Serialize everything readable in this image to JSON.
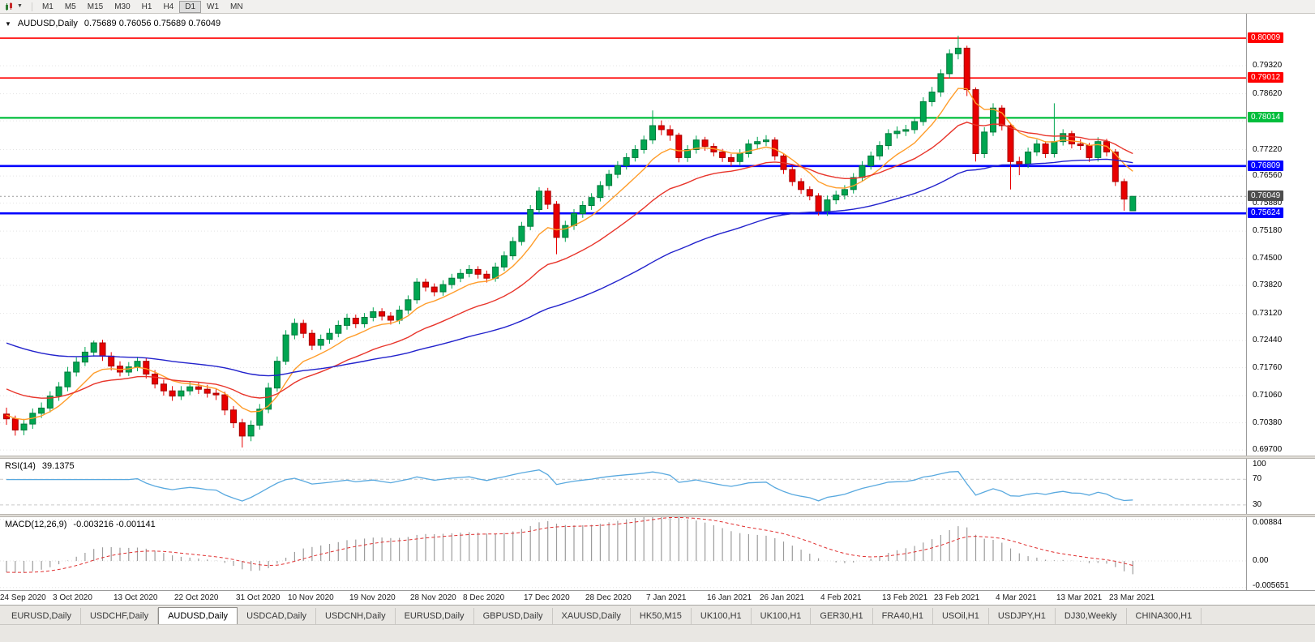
{
  "toolbar": {
    "timeframes": [
      "M1",
      "M5",
      "M15",
      "M30",
      "H1",
      "H4",
      "D1",
      "W1",
      "MN"
    ],
    "active_timeframe": "D1",
    "chart_type_icon": "candlestick-chart-icon",
    "dropdown_icon": "chevron-down-icon"
  },
  "main_pane": {
    "title": "AUDUSD,Daily",
    "ohlc": "0.75689 0.76056 0.75689 0.76049",
    "axis_ticks": [
      {
        "label": "0.79320",
        "value": 0.7932
      },
      {
        "label": "0.78620",
        "value": 0.7862
      },
      {
        "label": "0.77940",
        "value": 0.7794
      },
      {
        "label": "0.77220",
        "value": 0.7722
      },
      {
        "label": "0.76560",
        "value": 0.7656
      },
      {
        "label": "0.75880",
        "value": 0.7588
      },
      {
        "label": "0.75180",
        "value": 0.7518
      },
      {
        "label": "0.74500",
        "value": 0.745
      },
      {
        "label": "0.73820",
        "value": 0.7382
      },
      {
        "label": "0.73120",
        "value": 0.7312
      },
      {
        "label": "0.72440",
        "value": 0.7244
      },
      {
        "label": "0.71760",
        "value": 0.7176
      },
      {
        "label": "0.71060",
        "value": 0.7106
      },
      {
        "label": "0.70380",
        "value": 0.7038
      },
      {
        "label": "0.69700",
        "value": 0.697
      }
    ],
    "levels": [
      {
        "label": "0.80009",
        "value": 0.80009,
        "color": "#FF0000",
        "width": 1.6
      },
      {
        "label": "0.79012",
        "value": 0.79012,
        "color": "#FF0000",
        "width": 1.6
      },
      {
        "label": "0.78014",
        "value": 0.78014,
        "color": "#00BE3C",
        "width": 2.2
      },
      {
        "label": "0.76809",
        "value": 0.76809,
        "color": "#0000FF",
        "width": 2.6
      },
      {
        "label": "0.75624",
        "value": 0.75624,
        "color": "#0000FF",
        "width": 2.6
      }
    ],
    "current_price": {
      "label": "0.76049",
      "value": 0.76049,
      "badge_color": "#4D4D4D",
      "line_color": "#9A9A9A"
    }
  },
  "rsi_pane": {
    "label": "RSI(14)",
    "value": "39.1375",
    "period": 14,
    "color": "#59A9DF",
    "levels": [
      {
        "label": "100",
        "value": 100,
        "line": false
      },
      {
        "label": "70",
        "value": 70,
        "line": true
      },
      {
        "label": "30",
        "value": 30,
        "line": true
      }
    ]
  },
  "macd_pane": {
    "label": "MACD(12,26,9)",
    "values": "-0.003216 -0.001141",
    "params": {
      "fast": 12,
      "slow": 26,
      "signal": 9,
      "seed_fast": 0.706,
      "seed_slow": 0.7085
    },
    "colors": {
      "hist": "#9C9C9C",
      "signal": "#E03030"
    },
    "axis": [
      {
        "label": "0.00884",
        "value": 0.00884
      },
      {
        "label": "0.00",
        "value": 0
      },
      {
        "label": "-0.005651",
        "value": -0.005651
      }
    ]
  },
  "date_axis": {
    "labels": [
      {
        "text": "24 Sep 2020",
        "index": 0
      },
      {
        "text": "3 Oct 2020",
        "index": 6
      },
      {
        "text": "13 Oct 2020",
        "index": 13
      },
      {
        "text": "22 Oct 2020",
        "index": 20
      },
      {
        "text": "31 Oct 2020",
        "index": 27
      },
      {
        "text": "10 Nov 2020",
        "index": 33
      },
      {
        "text": "19 Nov 2020",
        "index": 40
      },
      {
        "text": "28 Nov 2020",
        "index": 47
      },
      {
        "text": "8 Dec 2020",
        "index": 53
      },
      {
        "text": "17 Dec 2020",
        "index": 60
      },
      {
        "text": "28 Dec 2020",
        "index": 67
      },
      {
        "text": "7 Jan 2021",
        "index": 74
      },
      {
        "text": "16 Jan 2021",
        "index": 81
      },
      {
        "text": "26 Jan 2021",
        "index": 87
      },
      {
        "text": "4 Feb 2021",
        "index": 94
      },
      {
        "text": "13 Feb 2021",
        "index": 101
      },
      {
        "text": "23 Feb 2021",
        "index": 107
      },
      {
        "text": "4 Mar 2021",
        "index": 114
      },
      {
        "text": "13 Mar 2021",
        "index": 121
      },
      {
        "text": "23 Mar 2021",
        "index": 127
      }
    ]
  },
  "tabs": {
    "items": [
      "EURUSD,Daily",
      "USDCHF,Daily",
      "AUDUSD,Daily",
      "USDCAD,Daily",
      "USDCNH,Daily",
      "EURUSD,Daily",
      "GBPUSD,Daily",
      "XAUUSD,Daily",
      "HK50,M15",
      "UK100,H1",
      "UK100,H1",
      "GER30,H1",
      "FRA40,H1",
      "USOil,H1",
      "USDJPY,H1",
      "DJ30,Weekly",
      "CHINA300,H1"
    ],
    "active_index": 2
  },
  "chart_data": {
    "type": "candlestick",
    "symbol": "AUDUSD",
    "timeframe": "Daily",
    "ohlc_display": {
      "open": "0.75689",
      "high": "0.76056",
      "low": "0.75689",
      "close": "0.76049"
    },
    "colors": {
      "bull": "#00A651",
      "bull_edge": "#00783B",
      "bear": "#E80000",
      "bear_edge": "#A50000"
    },
    "ma": {
      "fast": {
        "period": 8,
        "color": "#FF9D2B",
        "seed": 0.706
      },
      "mid": {
        "period": 21,
        "color": "#E8352B",
        "seed": 0.713
      },
      "slow": {
        "period": 55,
        "color": "#2222CC",
        "seed": 0.7245
      }
    },
    "candles": [
      [
        0.706,
        0.7076,
        0.7033,
        0.7048
      ],
      [
        0.7048,
        0.7056,
        0.7006,
        0.702
      ],
      [
        0.702,
        0.7048,
        0.7007,
        0.7035
      ],
      [
        0.7035,
        0.7074,
        0.7023,
        0.7062
      ],
      [
        0.7062,
        0.7089,
        0.705,
        0.7075
      ],
      [
        0.7075,
        0.7117,
        0.7064,
        0.7105
      ],
      [
        0.7105,
        0.714,
        0.7093,
        0.7128
      ],
      [
        0.7128,
        0.7178,
        0.7117,
        0.7165
      ],
      [
        0.7165,
        0.7202,
        0.7154,
        0.719
      ],
      [
        0.719,
        0.7228,
        0.718,
        0.7215
      ],
      [
        0.7215,
        0.7244,
        0.7204,
        0.7238
      ],
      [
        0.7238,
        0.7246,
        0.7193,
        0.7205
      ],
      [
        0.7205,
        0.7215,
        0.7169,
        0.718
      ],
      [
        0.718,
        0.7192,
        0.7154,
        0.7165
      ],
      [
        0.7165,
        0.719,
        0.7155,
        0.7178
      ],
      [
        0.7178,
        0.7203,
        0.7167,
        0.7192
      ],
      [
        0.7192,
        0.72,
        0.7149,
        0.716
      ],
      [
        0.716,
        0.717,
        0.7124,
        0.7135
      ],
      [
        0.7135,
        0.7146,
        0.7106,
        0.7118
      ],
      [
        0.7118,
        0.713,
        0.7093,
        0.7105
      ],
      [
        0.7105,
        0.713,
        0.7095,
        0.7118
      ],
      [
        0.7118,
        0.714,
        0.7107,
        0.7128
      ],
      [
        0.7128,
        0.714,
        0.711,
        0.7122
      ],
      [
        0.7122,
        0.7133,
        0.7101,
        0.7112
      ],
      [
        0.7112,
        0.7124,
        0.7095,
        0.7108
      ],
      [
        0.7108,
        0.7116,
        0.7057,
        0.707
      ],
      [
        0.707,
        0.708,
        0.7025,
        0.7038
      ],
      [
        0.7038,
        0.7048,
        0.6976,
        0.7005
      ],
      [
        0.7005,
        0.7044,
        0.6992,
        0.7032
      ],
      [
        0.7032,
        0.7085,
        0.7021,
        0.7072
      ],
      [
        0.7072,
        0.7138,
        0.7062,
        0.7125
      ],
      [
        0.7125,
        0.7204,
        0.7116,
        0.7192
      ],
      [
        0.7192,
        0.727,
        0.7183,
        0.7258
      ],
      [
        0.7258,
        0.7299,
        0.7247,
        0.7287
      ],
      [
        0.7287,
        0.7296,
        0.725,
        0.7262
      ],
      [
        0.7262,
        0.7271,
        0.722,
        0.7232
      ],
      [
        0.7232,
        0.7259,
        0.7221,
        0.7247
      ],
      [
        0.7247,
        0.7274,
        0.7236,
        0.7262
      ],
      [
        0.7262,
        0.7294,
        0.7252,
        0.7282
      ],
      [
        0.7282,
        0.7311,
        0.7271,
        0.73
      ],
      [
        0.73,
        0.7309,
        0.7275,
        0.7286
      ],
      [
        0.7286,
        0.7313,
        0.7276,
        0.7302
      ],
      [
        0.7302,
        0.7327,
        0.7292,
        0.7316
      ],
      [
        0.7316,
        0.7325,
        0.7294,
        0.7305
      ],
      [
        0.7305,
        0.7315,
        0.7284,
        0.7295
      ],
      [
        0.7295,
        0.7331,
        0.7285,
        0.732
      ],
      [
        0.732,
        0.7357,
        0.731,
        0.7346
      ],
      [
        0.7346,
        0.74,
        0.7336,
        0.739
      ],
      [
        0.739,
        0.7399,
        0.7367,
        0.7378
      ],
      [
        0.7378,
        0.7387,
        0.7355,
        0.7366
      ],
      [
        0.7366,
        0.7395,
        0.7356,
        0.7384
      ],
      [
        0.7384,
        0.7411,
        0.7374,
        0.74
      ],
      [
        0.74,
        0.7423,
        0.739,
        0.7412
      ],
      [
        0.7412,
        0.7433,
        0.7402,
        0.7422
      ],
      [
        0.7422,
        0.743,
        0.7399,
        0.741
      ],
      [
        0.741,
        0.7419,
        0.7389,
        0.74
      ],
      [
        0.74,
        0.7439,
        0.7391,
        0.7428
      ],
      [
        0.7428,
        0.7467,
        0.7418,
        0.7456
      ],
      [
        0.7456,
        0.7503,
        0.7446,
        0.7492
      ],
      [
        0.7492,
        0.7541,
        0.7482,
        0.753
      ],
      [
        0.753,
        0.7583,
        0.752,
        0.7572
      ],
      [
        0.7572,
        0.7628,
        0.7562,
        0.7618
      ],
      [
        0.7618,
        0.7626,
        0.7573,
        0.7585
      ],
      [
        0.7585,
        0.7593,
        0.746,
        0.7502
      ],
      [
        0.7502,
        0.7544,
        0.7491,
        0.7532
      ],
      [
        0.7532,
        0.7573,
        0.7521,
        0.7562
      ],
      [
        0.7562,
        0.7593,
        0.7551,
        0.7582
      ],
      [
        0.7582,
        0.7613,
        0.7571,
        0.7602
      ],
      [
        0.7602,
        0.7643,
        0.7592,
        0.7632
      ],
      [
        0.7632,
        0.7671,
        0.7621,
        0.766
      ],
      [
        0.766,
        0.7693,
        0.765,
        0.7682
      ],
      [
        0.7682,
        0.7713,
        0.7672,
        0.7702
      ],
      [
        0.7702,
        0.7733,
        0.7692,
        0.7722
      ],
      [
        0.7722,
        0.7757,
        0.7712,
        0.7746
      ],
      [
        0.7746,
        0.782,
        0.7736,
        0.7782
      ],
      [
        0.7782,
        0.7795,
        0.7758,
        0.7772
      ],
      [
        0.7772,
        0.7783,
        0.7744,
        0.7758
      ],
      [
        0.7758,
        0.7764,
        0.769,
        0.7702
      ],
      [
        0.7702,
        0.7733,
        0.7691,
        0.7722
      ],
      [
        0.7722,
        0.7757,
        0.7712,
        0.7746
      ],
      [
        0.7746,
        0.7754,
        0.7719,
        0.773
      ],
      [
        0.773,
        0.7738,
        0.7705,
        0.7716
      ],
      [
        0.7716,
        0.7724,
        0.7691,
        0.7702
      ],
      [
        0.7702,
        0.7711,
        0.768,
        0.7692
      ],
      [
        0.7692,
        0.7723,
        0.7682,
        0.7712
      ],
      [
        0.7712,
        0.7747,
        0.7702,
        0.7736
      ],
      [
        0.7736,
        0.7754,
        0.7724,
        0.7742
      ],
      [
        0.7742,
        0.7758,
        0.7731,
        0.7746
      ],
      [
        0.7746,
        0.7753,
        0.7695,
        0.7706
      ],
      [
        0.7706,
        0.7713,
        0.7661,
        0.7672
      ],
      [
        0.7672,
        0.768,
        0.7631,
        0.7642
      ],
      [
        0.7642,
        0.765,
        0.7611,
        0.7622
      ],
      [
        0.7622,
        0.763,
        0.7595,
        0.7606
      ],
      [
        0.7606,
        0.7613,
        0.7557,
        0.7566
      ],
      [
        0.7566,
        0.7607,
        0.7556,
        0.7596
      ],
      [
        0.7596,
        0.7619,
        0.7585,
        0.7608
      ],
      [
        0.7608,
        0.7633,
        0.7597,
        0.7622
      ],
      [
        0.7622,
        0.7663,
        0.7612,
        0.7652
      ],
      [
        0.7652,
        0.7693,
        0.7642,
        0.7682
      ],
      [
        0.7682,
        0.7717,
        0.7672,
        0.7706
      ],
      [
        0.7706,
        0.7743,
        0.7696,
        0.7732
      ],
      [
        0.7732,
        0.7773,
        0.7722,
        0.7762
      ],
      [
        0.7762,
        0.778,
        0.775,
        0.7768
      ],
      [
        0.7768,
        0.7784,
        0.7756,
        0.7772
      ],
      [
        0.7772,
        0.7803,
        0.7762,
        0.7792
      ],
      [
        0.7792,
        0.7853,
        0.7782,
        0.7842
      ],
      [
        0.7842,
        0.7879,
        0.783,
        0.7866
      ],
      [
        0.7866,
        0.7923,
        0.7854,
        0.7912
      ],
      [
        0.7912,
        0.7973,
        0.79,
        0.7962
      ],
      [
        0.7962,
        0.8007,
        0.7948,
        0.7976
      ],
      [
        0.7976,
        0.7982,
        0.7856,
        0.7872
      ],
      [
        0.7872,
        0.7878,
        0.7692,
        0.7712
      ],
      [
        0.7712,
        0.7778,
        0.7701,
        0.7766
      ],
      [
        0.7766,
        0.7838,
        0.7756,
        0.7826
      ],
      [
        0.7826,
        0.7833,
        0.777,
        0.7782
      ],
      [
        0.7782,
        0.7789,
        0.7622,
        0.7692
      ],
      [
        0.7692,
        0.7704,
        0.7658,
        0.7686
      ],
      [
        0.7686,
        0.7727,
        0.7676,
        0.7716
      ],
      [
        0.7716,
        0.7747,
        0.7706,
        0.7736
      ],
      [
        0.7736,
        0.7743,
        0.7701,
        0.7712
      ],
      [
        0.7712,
        0.7838,
        0.7702,
        0.7742
      ],
      [
        0.7742,
        0.7773,
        0.7732,
        0.7762
      ],
      [
        0.7762,
        0.7769,
        0.7725,
        0.7736
      ],
      [
        0.7736,
        0.7748,
        0.7721,
        0.7732
      ],
      [
        0.7732,
        0.7739,
        0.7691,
        0.7702
      ],
      [
        0.7702,
        0.7753,
        0.7692,
        0.7742
      ],
      [
        0.7742,
        0.7749,
        0.7705,
        0.7716
      ],
      [
        0.7716,
        0.7723,
        0.7631,
        0.7642
      ],
      [
        0.7642,
        0.7649,
        0.7569,
        0.7598
      ],
      [
        0.75689,
        0.76056,
        0.75689,
        0.76049
      ]
    ]
  }
}
